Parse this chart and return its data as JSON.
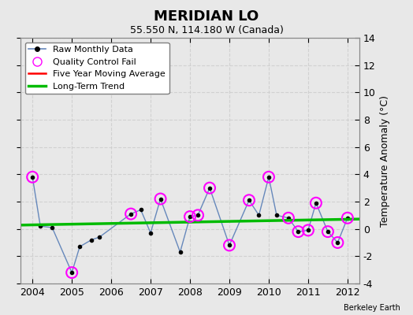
{
  "title": "MERIDIAN LO",
  "subtitle": "55.550 N, 114.180 W (Canada)",
  "ylabel": "Temperature Anomaly (°C)",
  "credit": "Berkeley Earth",
  "ylim": [
    -4,
    14
  ],
  "yticks": [
    -4,
    -2,
    0,
    2,
    4,
    6,
    8,
    10,
    12,
    14
  ],
  "xlim": [
    2003.7,
    2012.3
  ],
  "xticks": [
    2004,
    2005,
    2006,
    2007,
    2008,
    2009,
    2010,
    2011,
    2012
  ],
  "bg_color": "#e8e8e8",
  "raw_x": [
    2004.0,
    2004.2,
    2004.5,
    2005.0,
    2005.2,
    2005.5,
    2005.7,
    2006.5,
    2006.75,
    2007.0,
    2007.25,
    2007.75,
    2008.0,
    2008.2,
    2008.5,
    2009.0,
    2009.5,
    2009.75,
    2010.0,
    2010.2,
    2010.5,
    2010.75,
    2011.0,
    2011.2,
    2011.5,
    2011.75,
    2012.0
  ],
  "raw_y": [
    3.8,
    0.2,
    0.1,
    -3.2,
    -1.3,
    -0.8,
    -0.6,
    1.1,
    1.4,
    -0.3,
    2.2,
    -1.7,
    0.9,
    1.0,
    3.0,
    -1.2,
    2.1,
    1.0,
    3.8,
    1.0,
    0.8,
    -0.2,
    -0.1,
    1.9,
    -0.2,
    -1.0,
    0.8
  ],
  "qc_fail_x": [
    2004.0,
    2005.0,
    2006.5,
    2007.25,
    2008.0,
    2008.2,
    2008.5,
    2009.0,
    2009.5,
    2010.0,
    2010.5,
    2010.75,
    2011.0,
    2011.2,
    2011.5,
    2011.75,
    2012.0
  ],
  "qc_fail_y": [
    3.8,
    -3.2,
    1.1,
    2.2,
    0.9,
    1.0,
    3.0,
    -1.2,
    2.1,
    3.8,
    0.8,
    -0.2,
    -0.1,
    1.9,
    -0.2,
    -1.0,
    0.8
  ],
  "trend_x": [
    2003.7,
    2012.3
  ],
  "trend_y": [
    0.28,
    0.72
  ],
  "raw_line_color": "#6688bb",
  "raw_dot_color": "black",
  "qc_color": "magenta",
  "trend_color": "#00bb00",
  "mavg_color": "red",
  "grid_color": "#cccccc"
}
